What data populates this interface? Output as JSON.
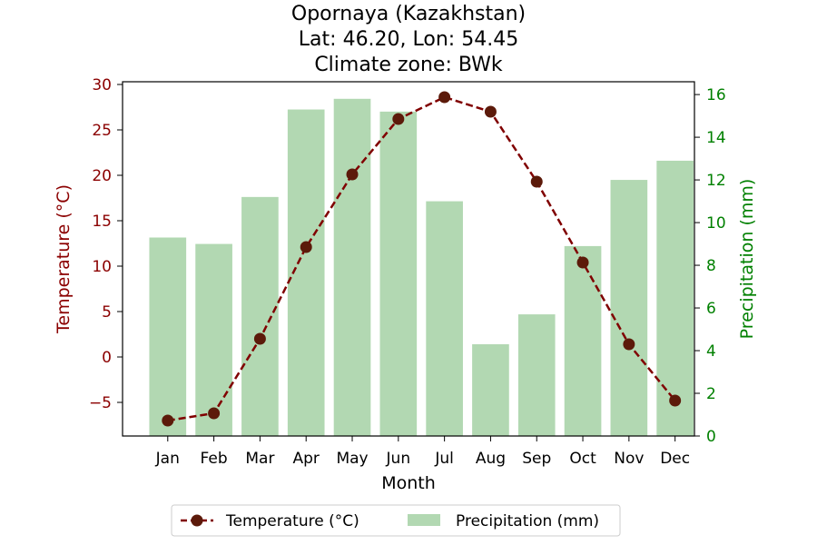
{
  "chart_data": {
    "type": "bar+line",
    "title_lines": [
      "Opornaya (Kazakhstan)",
      "Lat: 46.20, Lon: 54.45",
      "Climate zone: BWk"
    ],
    "xlabel": "Month",
    "categories": [
      "Jan",
      "Feb",
      "Mar",
      "Apr",
      "May",
      "Jun",
      "Jul",
      "Aug",
      "Sep",
      "Oct",
      "Nov",
      "Dec"
    ],
    "temperature": {
      "name": "Temperature (°C)",
      "axis_label": "Temperature (°C)",
      "values": [
        -7.0,
        -6.2,
        2.0,
        12.1,
        20.1,
        26.2,
        28.6,
        27.0,
        19.3,
        10.4,
        1.4,
        -4.8
      ],
      "ylim": [
        -8.7,
        30.3
      ],
      "ticks": [
        -5,
        0,
        5,
        10,
        15,
        20,
        25,
        30
      ],
      "color": "#800000",
      "line_style": "dashed",
      "marker": "circle"
    },
    "precipitation": {
      "name": "Precipitation (mm)",
      "axis_label": "Precipitation (mm)",
      "values": [
        9.3,
        9.0,
        11.2,
        15.3,
        15.8,
        15.2,
        11.0,
        4.3,
        5.7,
        8.9,
        12.0,
        12.9
      ],
      "ylim": [
        0,
        16.6
      ],
      "ticks": [
        0,
        2,
        4,
        6,
        8,
        10,
        12,
        14,
        16
      ],
      "color": "#b2d8b2"
    },
    "legend": {
      "placement": "bottom-center",
      "entries": [
        "Temperature (°C)",
        "Precipitation (mm)"
      ]
    },
    "grid": false
  },
  "colors": {
    "temperature_axis": "#8b0000",
    "precipitation_axis": "#008000",
    "temperature_line": "#800000",
    "temperature_marker": "#5c1a0a",
    "bar_fill": "#b2d8b2"
  }
}
